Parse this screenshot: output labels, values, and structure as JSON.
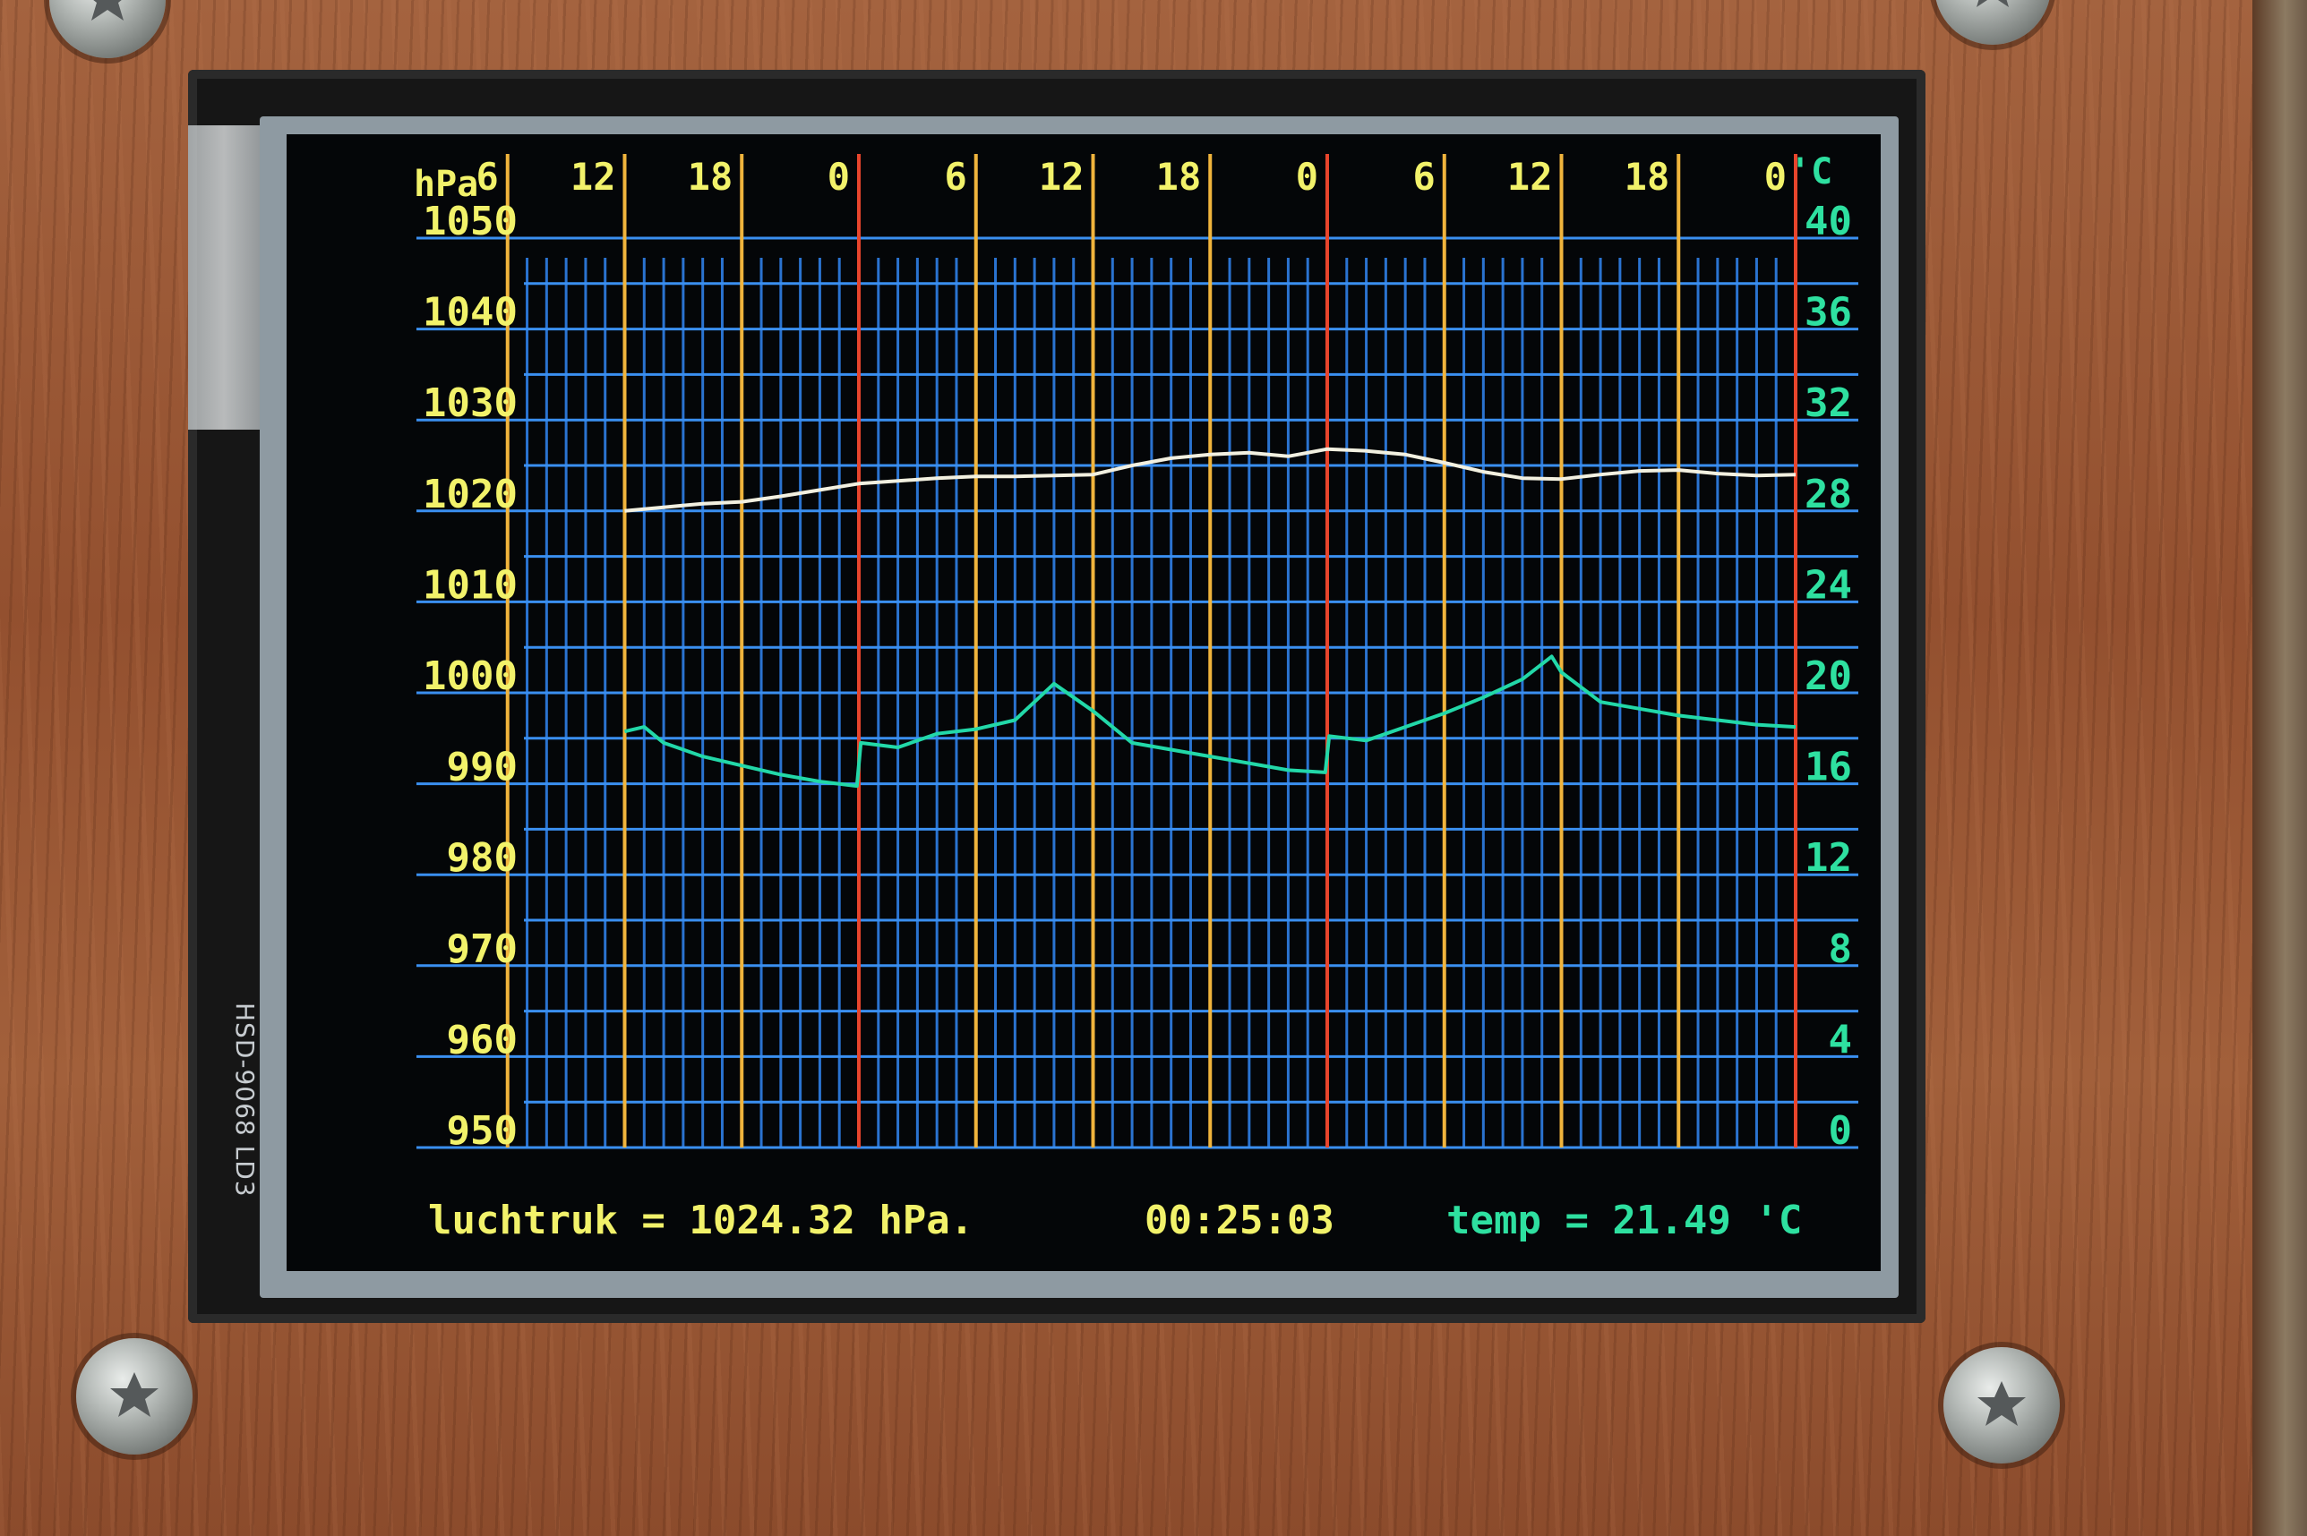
{
  "device": {
    "side_label": "HSD-9068 LD3"
  },
  "colors": {
    "grid": "#2f7fe6",
    "grid_major": "#3a8ff0",
    "hour_line": "#f0b43c",
    "midnight_line": "#e8452c",
    "pressure_label": "#f2f26a",
    "temp_label": "#2ee0a0",
    "pressure_trace": "#f2f0e0",
    "temp_trace": "#22d8a8"
  },
  "chart_data": {
    "type": "line",
    "left_axis": {
      "unit": "hPa",
      "ticks": [
        "1050",
        "1040",
        "1030",
        "1020",
        "1010",
        "1000",
        "990",
        "980",
        "970",
        "960",
        "950"
      ],
      "range": [
        950,
        1050
      ]
    },
    "right_axis": {
      "unit": "'C",
      "ticks": [
        "40",
        "36",
        "32",
        "28",
        "24",
        "20",
        "16",
        "12",
        "8",
        "4",
        "0"
      ],
      "range": [
        0,
        40
      ]
    },
    "x_axis": {
      "tick_labels": [
        "6",
        "12",
        "18",
        "0",
        "6",
        "12",
        "18",
        "0",
        "6",
        "12",
        "18",
        "0"
      ],
      "hours": [
        6,
        12,
        18,
        24,
        30,
        36,
        42,
        48,
        54,
        60,
        66,
        72
      ],
      "midnight_hours": [
        24,
        48,
        72
      ],
      "range": [
        0,
        72
      ],
      "minor_step_hours": 1
    },
    "series": [
      {
        "axis": "left",
        "hours": [
          12,
          14,
          16,
          18,
          20,
          22,
          24,
          26,
          28,
          30,
          32,
          34,
          36,
          38,
          40,
          42,
          44,
          46,
          48,
          50,
          52,
          54,
          56,
          58,
          60,
          62,
          64,
          66,
          68,
          70,
          72
        ],
        "values": [
          1020,
          1020.4,
          1020.8,
          1021,
          1021.6,
          1022.3,
          1023,
          1023.3,
          1023.6,
          1023.8,
          1023.8,
          1023.9,
          1024,
          1025,
          1025.8,
          1026.2,
          1026.4,
          1026,
          1026.8,
          1026.6,
          1026.2,
          1025.3,
          1024.3,
          1023.6,
          1023.5,
          1024,
          1024.4,
          1024.5,
          1024.1,
          1023.9,
          1024
        ]
      },
      {
        "axis": "right",
        "hours": [
          12,
          13,
          14,
          16,
          18,
          20,
          22,
          23.9,
          24.1,
          26,
          28,
          30,
          32,
          34,
          36,
          38,
          40,
          42,
          44,
          46,
          47.9,
          48.1,
          50,
          52,
          54,
          56,
          58,
          59.5,
          60,
          62,
          64,
          66,
          68,
          70,
          72
        ],
        "values": [
          18.3,
          18.5,
          17.8,
          17.2,
          16.8,
          16.4,
          16.1,
          15.9,
          17.8,
          17.6,
          18.2,
          18.4,
          18.8,
          20.4,
          19.2,
          17.8,
          17.5,
          17.2,
          16.9,
          16.6,
          16.5,
          18.1,
          17.9,
          18.5,
          19.1,
          19.8,
          20.6,
          21.6,
          20.9,
          19.6,
          19.3,
          19,
          18.8,
          18.6,
          18.5
        ]
      }
    ]
  },
  "status_bar": {
    "pressure_text": "luchtruk = 1024.32 hPa.",
    "time_text": "00:25:03",
    "temp_text": "temp = 21.49 'C"
  }
}
